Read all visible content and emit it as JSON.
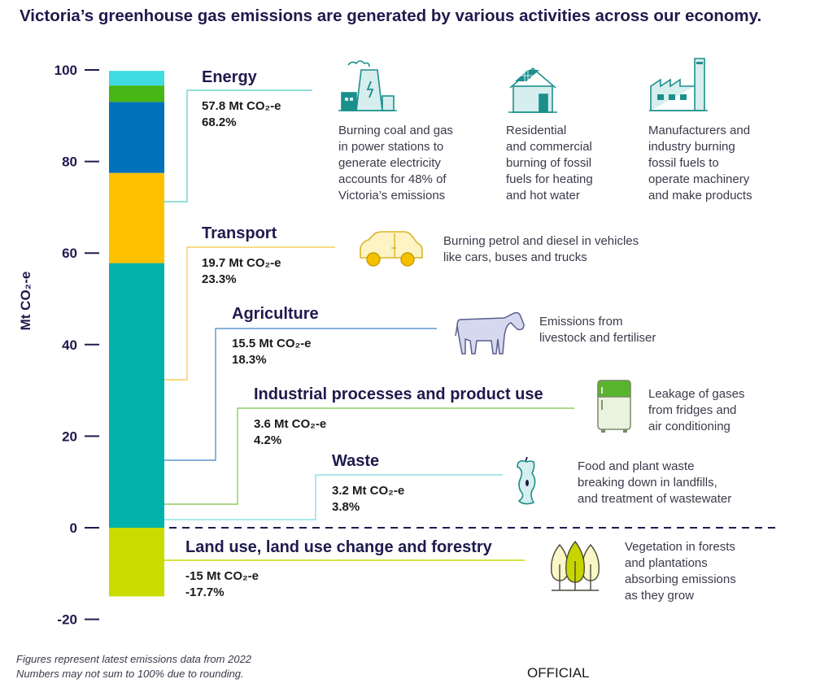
{
  "title": "Victoria’s greenhouse gas emissions are generated by various activities across our economy.",
  "chart_data": {
    "type": "bar",
    "subtype": "stacked-single-column",
    "ylabel": "Mt CO₂-e",
    "ylim": [
      -20,
      100
    ],
    "yticks": [
      100,
      80,
      60,
      40,
      20,
      0,
      -20
    ],
    "segments": [
      {
        "name": "Energy",
        "value": 57.8,
        "value_label": "57.8 Mt CO₂-e",
        "percent_label": "68.2%",
        "color": "#00b2a9",
        "leader_color": "#6fd3ce"
      },
      {
        "name": "Transport",
        "value": 19.7,
        "value_label": "19.7 Mt CO₂-e",
        "percent_label": "23.3%",
        "color": "#ffc000",
        "leader_color": "#f3cf5e"
      },
      {
        "name": "Agriculture",
        "value": 15.5,
        "value_label": "15.5 Mt CO₂-e",
        "percent_label": "18.3%",
        "color": "#0072bc",
        "leader_color": "#5a98cf"
      },
      {
        "name": "Industrial processes and product use",
        "value": 3.6,
        "value_label": "3.6 Mt CO₂-e",
        "percent_label": "4.2%",
        "color": "#48b614",
        "leader_color": "#8fcc62"
      },
      {
        "name": "Waste",
        "value": 3.2,
        "value_label": "3.2 Mt CO₂-e",
        "percent_label": "3.8%",
        "color": "#3fdbe0",
        "leader_color": "#8fdfe4"
      },
      {
        "name": "Land use, land use change and forestry",
        "value": -15,
        "value_label": "-15 Mt CO₂-e",
        "percent_label": "-17.7%",
        "color": "#c8dc00",
        "leader_color": "#c8dc00"
      }
    ]
  },
  "descriptions": {
    "energy_power": [
      "Burning coal and gas",
      "in power stations to",
      "generate electricity",
      "accounts for 48% of",
      "Victoria’s emissions"
    ],
    "energy_residential": [
      "Residential",
      "and commercial",
      "burning of fossil",
      "fuels for heating",
      "and hot water"
    ],
    "energy_manufacturing": [
      "Manufacturers and",
      "industry burning",
      "fossil fuels to",
      "operate machinery",
      "and make products"
    ],
    "transport": [
      "Burning petrol and diesel in vehicles",
      "like cars, buses and trucks"
    ],
    "agriculture": [
      "Emissions from",
      "livestock and fertiliser"
    ],
    "industrial": [
      "Leakage of gases",
      "from fridges and",
      "air conditioning"
    ],
    "waste": [
      "Food and plant waste",
      "breaking down in landfills,",
      "and treatment of wastewater"
    ],
    "land_use": [
      "Vegetation in forests",
      "and plantations",
      "absorbing emissions",
      "as they grow"
    ]
  },
  "footnote": [
    "Figures represent latest emissions data from 2022",
    "Numbers may not sum to 100% due to rounding."
  ],
  "official_label": "OFFICIAL",
  "colors": {
    "navy": "#1f1a4d",
    "icon_teal": "#1b8f8c",
    "icon_fill": "#d6eeee"
  }
}
